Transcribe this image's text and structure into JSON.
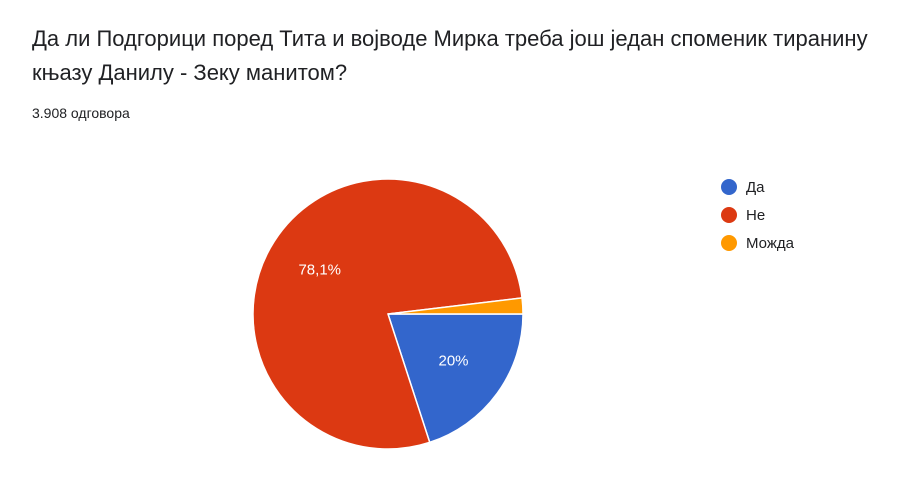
{
  "chart_data": {
    "type": "pie",
    "title": "Да ли Подгорици поред Тита и војводе Мирка треба још један споменик тиранину књазу Данилу - Зеку манитом?",
    "subtitle": "3.908 одговора",
    "categories": [
      "Да",
      "Не",
      "Можда"
    ],
    "values": [
      20,
      78.1,
      1.9
    ],
    "value_labels": [
      "20%",
      "78,1%",
      null
    ],
    "colors": [
      "#3366cc",
      "#dc3912",
      "#ff9900"
    ],
    "legend": "right"
  }
}
